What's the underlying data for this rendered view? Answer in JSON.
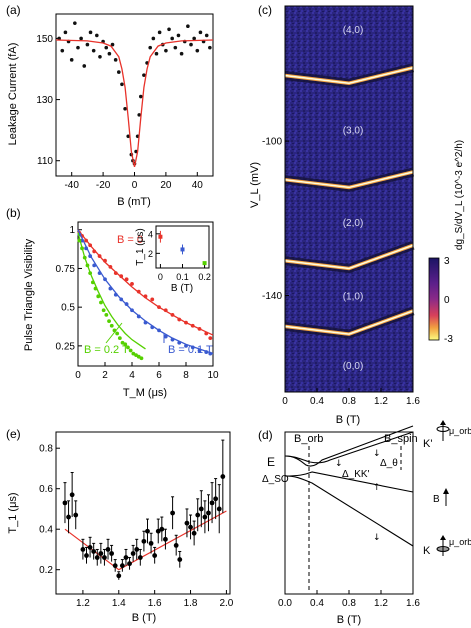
{
  "figure": {
    "panels": {
      "a": {
        "label": "(a)",
        "ylabel": "Leakage Current (fA)",
        "xlabel": "B (mT)"
      },
      "b": {
        "label": "(b)",
        "ylabel": "Pulse Triangle Visibility",
        "xlabel": "T_M (μs)",
        "series_labels": {
          "b0": "B = 0",
          "b02": "B = 0.2 T",
          "b01": "B = 0.1 T"
        },
        "inset": {
          "ylabel": "T_1 (μs)",
          "xlabel": "B (T)"
        }
      },
      "c": {
        "label": "(c)",
        "ylabel": "V_L (mV)",
        "xlabel": "B (T)",
        "cbar_label": "dg_S/dV_L (10^-3 e^2/h)",
        "states": [
          "(4,0)",
          "(3,0)",
          "(2,0)",
          "(1,0)",
          "(0,0)"
        ]
      },
      "e": {
        "label": "(e)",
        "ylabel": "T_1 (μs)",
        "xlabel": "B (T)"
      },
      "d": {
        "label": "(d)",
        "xlabel": "B (T)",
        "E": "E",
        "B_orb": "B_orb",
        "B_spin": "B_spin",
        "delta_so": "Δ_SO",
        "delta_kk": "Δ_KK'",
        "delta_theta": "Δ_θ",
        "K_prime": "K'",
        "K": "K",
        "mu_orb": "μ_orb",
        "B_arrow": "B"
      }
    }
  },
  "chart_data": [
    {
      "type": "scatter",
      "panel": "a",
      "xlabel": "B (mT)",
      "ylabel": "Leakage Current (fA)",
      "xlim": [
        -50,
        50
      ],
      "ylim": [
        105,
        158
      ],
      "xticks": [
        -40,
        -20,
        0,
        20,
        40
      ],
      "yticks": [
        110,
        130,
        150
      ],
      "series": [
        {
          "kind": "points",
          "x": [
            -48,
            -46,
            -44,
            -42,
            -40,
            -38,
            -36,
            -34,
            -32,
            -30,
            -28,
            -26,
            -24,
            -22,
            -20,
            -18,
            -16,
            -14,
            -12,
            -10,
            -8,
            -6,
            -4,
            -2,
            -1,
            0,
            1,
            2,
            3,
            4,
            6,
            8,
            10,
            12,
            14,
            16,
            18,
            20,
            22,
            24,
            26,
            28,
            30,
            32,
            34,
            36,
            38,
            40,
            42,
            44,
            46,
            48
          ],
          "y": [
            150,
            146,
            152,
            149,
            143,
            155,
            147,
            150,
            141,
            148,
            152,
            146,
            151,
            144,
            149,
            147,
            145,
            148,
            143,
            139,
            135,
            127,
            118,
            112,
            110,
            109,
            113,
            118,
            125,
            131,
            138,
            142,
            147,
            150,
            145,
            152,
            148,
            146,
            153,
            150,
            147,
            151,
            145,
            149,
            154,
            148,
            150,
            146,
            152,
            149,
            151,
            147
          ]
        },
        {
          "kind": "fit",
          "x": [
            -50,
            -30,
            -20,
            -15,
            -10,
            -8,
            -6,
            -4,
            -2,
            0,
            2,
            4,
            6,
            8,
            10,
            15,
            20,
            30,
            50
          ],
          "y": [
            149.5,
            149.2,
            148.5,
            147.5,
            144,
            140,
            134,
            124,
            113,
            108,
            113,
            124,
            134,
            140,
            144,
            147.5,
            148.5,
            149.2,
            149.5
          ]
        }
      ]
    },
    {
      "type": "scatter",
      "panel": "b",
      "xlabel": "T_M (μs)",
      "ylabel": "Pulse Triangle Visibility",
      "xlim": [
        0,
        10
      ],
      "ylim": [
        0.12,
        1.05
      ],
      "xticks": [
        0,
        2,
        4,
        6,
        8,
        10
      ],
      "yticks": [
        0.25,
        0.5,
        0.75,
        1
      ],
      "series": [
        {
          "name": "B = 0",
          "color": "#e8322a",
          "x": [
            0.1,
            0.3,
            0.6,
            0.9,
            1.2,
            1.6,
            2.0,
            2.4,
            2.8,
            3.2,
            3.6,
            4.0,
            4.5,
            5.0,
            5.5,
            6.0,
            6.5,
            7.0,
            7.5,
            8.0,
            8.5,
            9.0,
            9.5,
            9.8
          ],
          "y": [
            0.98,
            0.96,
            0.93,
            0.9,
            0.86,
            0.83,
            0.8,
            0.76,
            0.72,
            0.7,
            0.68,
            0.65,
            0.6,
            0.57,
            0.55,
            0.5,
            0.48,
            0.45,
            0.42,
            0.4,
            0.38,
            0.36,
            0.33,
            0.3
          ],
          "fit_x": [
            0,
            1,
            2,
            3,
            4,
            5,
            6,
            7,
            8,
            9,
            10
          ],
          "fit_y": [
            1.0,
            0.89,
            0.79,
            0.71,
            0.63,
            0.56,
            0.5,
            0.45,
            0.4,
            0.36,
            0.32
          ]
        },
        {
          "name": "B = 0.1 T",
          "color": "#3a5ad0",
          "x": [
            0.1,
            0.3,
            0.6,
            0.9,
            1.2,
            1.6,
            2.0,
            2.4,
            2.8,
            3.2,
            3.6,
            4.0,
            4.5,
            5.0,
            5.5,
            6.0,
            6.5,
            7.0,
            7.5,
            8.0,
            8.5,
            9.0,
            9.5,
            9.8
          ],
          "y": [
            0.97,
            0.93,
            0.88,
            0.83,
            0.77,
            0.72,
            0.68,
            0.62,
            0.58,
            0.55,
            0.52,
            0.48,
            0.44,
            0.4,
            0.37,
            0.35,
            0.31,
            0.29,
            0.27,
            0.25,
            0.24,
            0.22,
            0.21,
            0.2
          ],
          "fit_x": [
            0,
            1,
            2,
            3,
            4,
            5,
            6,
            7,
            8,
            9,
            10
          ],
          "fit_y": [
            1.0,
            0.82,
            0.68,
            0.57,
            0.48,
            0.41,
            0.35,
            0.3,
            0.26,
            0.23,
            0.2
          ]
        },
        {
          "name": "B = 0.2 T",
          "color": "#55d000",
          "x": [
            0.1,
            0.3,
            0.5,
            0.7,
            0.9,
            1.1,
            1.3,
            1.5,
            1.7,
            1.9,
            2.1,
            2.3,
            2.5,
            2.7,
            2.9,
            3.1,
            3.3,
            3.5,
            3.7,
            3.9,
            4.1,
            4.3,
            4.5,
            4.7
          ],
          "y": [
            0.93,
            0.88,
            0.82,
            0.77,
            0.72,
            0.66,
            0.62,
            0.57,
            0.53,
            0.48,
            0.45,
            0.41,
            0.38,
            0.35,
            0.33,
            0.3,
            0.27,
            0.26,
            0.24,
            0.22,
            0.2,
            0.19,
            0.18,
            0.17
          ],
          "fit_x": [
            0,
            0.5,
            1,
            1.5,
            2,
            2.5,
            3,
            3.5,
            4,
            4.5,
            5
          ],
          "fit_y": [
            0.98,
            0.82,
            0.7,
            0.6,
            0.51,
            0.44,
            0.38,
            0.33,
            0.29,
            0.26,
            0.23
          ]
        }
      ]
    },
    {
      "type": "scatter",
      "panel": "b-inset",
      "xlabel": "B (T)",
      "ylabel": "T_1 (μs)",
      "xlim": [
        -0.02,
        0.22
      ],
      "ylim": [
        0.5,
        4.8
      ],
      "xticks": [
        0,
        0.1,
        0.2
      ],
      "yticks": [
        2,
        4
      ],
      "points": [
        {
          "x": 0,
          "y": 3.7,
          "err": 0.6,
          "color": "#e8322a"
        },
        {
          "x": 0.1,
          "y": 2.4,
          "err": 0.5,
          "color": "#3a5ad0"
        },
        {
          "x": 0.2,
          "y": 1.0,
          "err": 0.15,
          "color": "#55d000"
        }
      ]
    },
    {
      "type": "heatmap",
      "panel": "c",
      "xlabel": "B (T)",
      "ylabel": "V_L (mV)",
      "xlim": [
        0,
        1.6
      ],
      "ylim": [
        -165,
        -65
      ],
      "xticks": [
        0,
        0.4,
        0.8,
        1.2,
        1.6
      ],
      "yticks": [
        -100,
        -140
      ],
      "colorbar": {
        "range": [
          -3,
          3
        ],
        "ticks": [
          3,
          0,
          -3
        ]
      },
      "transition_lines": [
        {
          "x": [
            0,
            0.4,
            0.8,
            1.2,
            1.6
          ],
          "y": [
            -83,
            -84,
            -85,
            -83,
            -81
          ]
        },
        {
          "x": [
            0,
            0.4,
            0.8,
            1.2,
            1.6
          ],
          "y": [
            -110,
            -111,
            -112,
            -110,
            -108
          ]
        },
        {
          "x": [
            0,
            0.4,
            0.8,
            1.2,
            1.6
          ],
          "y": [
            -131,
            -132,
            -133,
            -130,
            -127
          ]
        },
        {
          "x": [
            0,
            0.4,
            0.8,
            1.2,
            1.6
          ],
          "y": [
            -148,
            -149,
            -150,
            -147,
            -144
          ]
        }
      ]
    },
    {
      "type": "scatter",
      "panel": "e",
      "xlabel": "B (T)",
      "ylabel": "T_1 (μs)",
      "xlim": [
        1.05,
        2.02
      ],
      "ylim": [
        0.08,
        0.88
      ],
      "xticks": [
        1.2,
        1.4,
        1.6,
        1.8,
        2.0
      ],
      "yticks": [
        0.2,
        0.4,
        0.6,
        0.8
      ],
      "points": {
        "x": [
          1.1,
          1.12,
          1.14,
          1.16,
          1.2,
          1.22,
          1.24,
          1.26,
          1.28,
          1.3,
          1.32,
          1.34,
          1.36,
          1.38,
          1.4,
          1.42,
          1.44,
          1.46,
          1.48,
          1.5,
          1.52,
          1.54,
          1.56,
          1.58,
          1.6,
          1.62,
          1.64,
          1.66,
          1.7,
          1.72,
          1.74,
          1.78,
          1.8,
          1.82,
          1.84,
          1.86,
          1.88,
          1.9,
          1.92,
          1.94,
          1.96,
          1.98
        ],
        "y": [
          0.53,
          0.46,
          0.57,
          0.47,
          0.3,
          0.27,
          0.31,
          0.29,
          0.26,
          0.28,
          0.26,
          0.3,
          0.28,
          0.22,
          0.17,
          0.22,
          0.26,
          0.23,
          0.28,
          0.3,
          0.26,
          0.34,
          0.39,
          0.33,
          0.27,
          0.39,
          0.4,
          0.35,
          0.48,
          0.32,
          0.25,
          0.43,
          0.41,
          0.38,
          0.47,
          0.5,
          0.46,
          0.48,
          0.53,
          0.55,
          0.5,
          0.66
        ],
        "err": [
          0.1,
          0.08,
          0.11,
          0.07,
          0.05,
          0.04,
          0.05,
          0.04,
          0.04,
          0.05,
          0.04,
          0.05,
          0.04,
          0.03,
          0.02,
          0.03,
          0.04,
          0.03,
          0.04,
          0.05,
          0.04,
          0.05,
          0.06,
          0.05,
          0.04,
          0.06,
          0.06,
          0.05,
          0.08,
          0.05,
          0.04,
          0.07,
          0.06,
          0.06,
          0.08,
          0.09,
          0.08,
          0.09,
          0.1,
          0.1,
          0.12,
          0.18
        ]
      },
      "fit": {
        "x": [
          1.1,
          1.4,
          2.0
        ],
        "y": [
          0.4,
          0.2,
          0.49
        ]
      }
    },
    {
      "type": "line",
      "panel": "d",
      "xlabel": "B (T)",
      "xlim": [
        0,
        1.6
      ],
      "xticks": [
        0,
        0.4,
        0.8,
        1.2,
        1.6
      ]
    }
  ]
}
